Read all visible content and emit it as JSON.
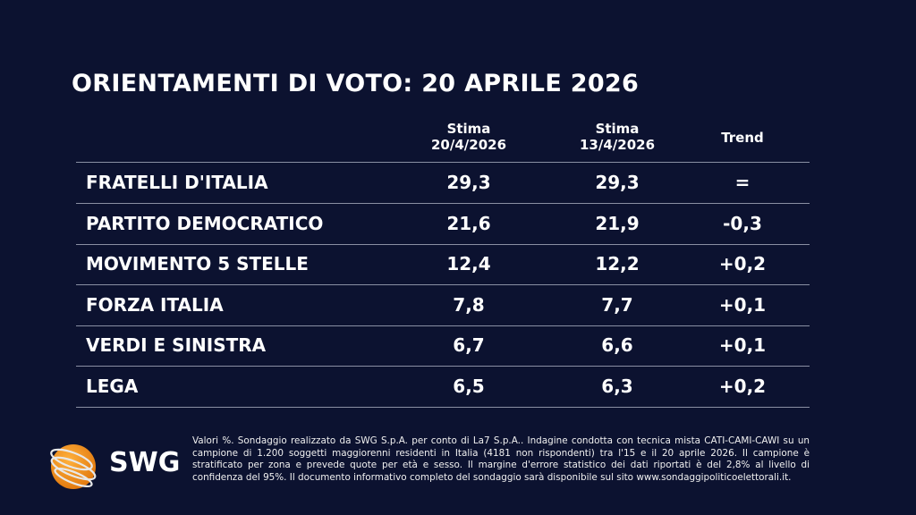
{
  "title": "ORIENTAMENTI DI VOTO: 20 APRILE 2026",
  "chart_data": {
    "type": "table",
    "title": "ORIENTAMENTI DI VOTO: 20 APRILE 2026",
    "columns": [
      {
        "line1": "Stima",
        "line2": "20/4/2026"
      },
      {
        "line1": "Stima",
        "line2": "13/4/2026"
      },
      {
        "line1": "Trend",
        "line2": ""
      }
    ],
    "rows": [
      {
        "party": "FRATELLI D'ITALIA",
        "current": "29,3",
        "previous": "29,3",
        "trend": "="
      },
      {
        "party": "PARTITO DEMOCRATICO",
        "current": "21,6",
        "previous": "21,9",
        "trend": "-0,3"
      },
      {
        "party": "MOVIMENTO 5 STELLE",
        "current": "12,4",
        "previous": "12,2",
        "trend": "+0,2"
      },
      {
        "party": "FORZA ITALIA",
        "current": "7,8",
        "previous": "7,7",
        "trend": "+0,1"
      },
      {
        "party": "VERDI E SINISTRA",
        "current": "6,7",
        "previous": "6,6",
        "trend": "+0,1"
      },
      {
        "party": "LEGA",
        "current": "6,5",
        "previous": "6,3",
        "trend": "+0,2"
      }
    ]
  },
  "footnote": "Valori %. Sondaggio realizzato da SWG S.p.A. per conto di La7 S.p.A.. Indagine condotta con tecnica mista CATI-CAMI-CAWI su un campione di 1.200 soggetti maggiorenni residenti in Italia (4181 non rispondenti) tra l'15 e il 20 aprile 2026. Il campione è stratificato per zona e prevede quote per età e sesso. Il margine d'errore statistico dei dati riportati è del 2,8% al livello di confidenza del 95%. Il documento informativo completo del sondaggio sarà disponibile sul sito www.sondaggipoliticoelettorali.it.",
  "logo": {
    "text": "SWG",
    "icon": "globe-orbit-icon",
    "color": "#f39a1e"
  },
  "colors": {
    "background": "#0c1230",
    "text": "#ffffff",
    "rule": "#8a8fa3"
  }
}
